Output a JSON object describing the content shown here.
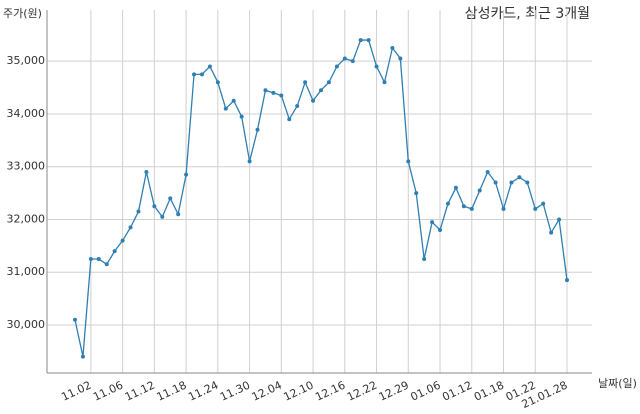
{
  "chart_data": {
    "type": "line",
    "title": "삼성카드, 최근 3개월",
    "y_label": "주가(원)",
    "x_label": "날짜(일)",
    "categories": [
      null,
      null,
      "11.02",
      null,
      null,
      null,
      "11.06",
      null,
      null,
      null,
      "11.12",
      null,
      null,
      null,
      "11.18",
      null,
      null,
      null,
      "11.24",
      null,
      null,
      null,
      "11.30",
      null,
      null,
      null,
      "12.04",
      null,
      null,
      null,
      "12.10",
      null,
      null,
      null,
      "12.16",
      null,
      null,
      null,
      "12.22",
      null,
      null,
      null,
      "12.29",
      null,
      null,
      null,
      "01.06",
      null,
      null,
      null,
      "01.12",
      null,
      null,
      null,
      "01.18",
      null,
      null,
      null,
      "01.22",
      null,
      null,
      null,
      "21.01.28"
    ],
    "values": [
      30100,
      29400,
      31250,
      31250,
      31150,
      31400,
      31600,
      31850,
      32150,
      32900,
      32250,
      32050,
      32400,
      32100,
      32850,
      34750,
      34750,
      34900,
      34600,
      34100,
      34250,
      33950,
      33100,
      33700,
      34450,
      34400,
      34350,
      33900,
      34150,
      34600,
      34250,
      34450,
      34600,
      34900,
      35050,
      35000,
      35400,
      35400,
      34900,
      34600,
      35250,
      35050,
      33100,
      32500,
      31250,
      31950,
      31800,
      32300,
      32600,
      32250,
      32200,
      32550,
      32900,
      32700,
      32200,
      32700,
      32800,
      32700,
      32200,
      32300,
      31750,
      32000,
      30850
    ],
    "color": "#2f7fb3",
    "ylim": [
      29090,
      35970
    ],
    "yticks": [
      {
        "value": 30000,
        "label": "30,000"
      },
      {
        "value": 31000,
        "label": "31,000"
      },
      {
        "value": 32000,
        "label": "32,000"
      },
      {
        "value": 33000,
        "label": "33,000"
      },
      {
        "value": 34000,
        "label": "34,000"
      },
      {
        "value": 35000,
        "label": "35,000"
      }
    ],
    "grid": true
  }
}
